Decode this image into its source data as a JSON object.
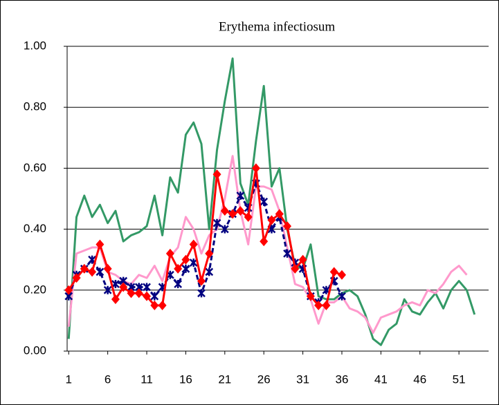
{
  "chart_data": {
    "type": "line",
    "title": "Erythema infectiosum",
    "x": [
      1,
      2,
      3,
      4,
      5,
      6,
      7,
      8,
      9,
      10,
      11,
      12,
      13,
      14,
      15,
      16,
      17,
      18,
      19,
      20,
      21,
      22,
      23,
      24,
      25,
      26,
      27,
      28,
      29,
      30,
      31,
      32,
      33,
      34,
      35,
      36,
      37,
      38,
      39,
      40,
      41,
      42,
      43,
      44,
      45,
      46,
      47,
      48,
      49,
      50,
      51,
      52,
      53
    ],
    "xlim": [
      0.8,
      54.8
    ],
    "xticks": [
      1,
      6,
      11,
      16,
      21,
      26,
      31,
      36,
      41,
      46,
      51
    ],
    "ylim": [
      0,
      1
    ],
    "yticks": [
      {
        "value": 0,
        "label": "0.00"
      },
      {
        "value": 0.2,
        "label": "0.20"
      },
      {
        "value": 0.4,
        "label": "0.40"
      },
      {
        "value": 0.6,
        "label": "0.60"
      },
      {
        "value": 0.8,
        "label": "0.80"
      },
      {
        "value": 1,
        "label": "1.00"
      }
    ],
    "grid": true,
    "series": [
      {
        "color": "#339966",
        "values": [
          0.04,
          0.44,
          0.51,
          0.44,
          0.48,
          0.42,
          0.46,
          0.36,
          0.38,
          0.39,
          0.41,
          0.51,
          0.38,
          0.57,
          0.52,
          0.71,
          0.75,
          0.68,
          0.4,
          0.66,
          0.82,
          0.96,
          0.55,
          0.48,
          0.69,
          0.87,
          0.54,
          0.6,
          0.4,
          0.28,
          0.27,
          0.35,
          0.18,
          0.17,
          0.17,
          0.19,
          0.2,
          0.18,
          0.12,
          0.04,
          0.02,
          0.07,
          0.09,
          0.17,
          0.13,
          0.12,
          0.16,
          0.19,
          0.14,
          0.2,
          0.23,
          0.2,
          0.12
        ]
      },
      {
        "color": "#ff99cc",
        "values": [
          0.08,
          0.32,
          0.33,
          0.34,
          0.34,
          0.26,
          0.25,
          0.23,
          0.22,
          0.25,
          0.24,
          0.28,
          0.23,
          0.31,
          0.34,
          0.44,
          0.4,
          0.32,
          0.38,
          0.4,
          0.5,
          0.64,
          0.46,
          0.35,
          0.54,
          0.54,
          0.53,
          0.46,
          0.34,
          0.22,
          0.21,
          0.17,
          0.09,
          0.16,
          0.16,
          0.18,
          0.14,
          0.13,
          0.11,
          0.06,
          0.11,
          0.12,
          0.13,
          0.15,
          0.16,
          0.15,
          0.2,
          0.19,
          0.22,
          0.26,
          0.28,
          0.25,
          null
        ]
      },
      {
        "color": "#000080",
        "marker": "x",
        "dash": true,
        "values": [
          0.18,
          0.25,
          0.27,
          0.3,
          0.26,
          0.2,
          0.22,
          0.23,
          0.21,
          0.21,
          0.21,
          0.18,
          0.21,
          0.25,
          0.22,
          0.27,
          0.29,
          0.19,
          0.26,
          0.42,
          0.4,
          0.45,
          0.51,
          0.47,
          0.55,
          0.49,
          0.4,
          0.44,
          0.32,
          0.29,
          0.27,
          0.18,
          0.16,
          0.2,
          0.23,
          0.18,
          null,
          null,
          null,
          null,
          null,
          null,
          null,
          null,
          null,
          null,
          null,
          null,
          null,
          null,
          null,
          null,
          null
        ]
      },
      {
        "color": "#ff0000",
        "marker": "diamond",
        "values": [
          0.2,
          0.24,
          0.27,
          0.26,
          0.35,
          0.27,
          0.17,
          0.21,
          0.19,
          0.19,
          0.18,
          0.15,
          0.15,
          0.32,
          0.27,
          0.3,
          0.35,
          0.23,
          0.32,
          0.58,
          0.46,
          0.45,
          0.46,
          0.44,
          0.6,
          0.36,
          0.43,
          0.45,
          0.41,
          0.27,
          0.3,
          0.18,
          0.15,
          0.15,
          0.26,
          0.25,
          null,
          null,
          null,
          null,
          null,
          null,
          null,
          null,
          null,
          null,
          null,
          null,
          null,
          null,
          null,
          null,
          null
        ]
      }
    ]
  }
}
